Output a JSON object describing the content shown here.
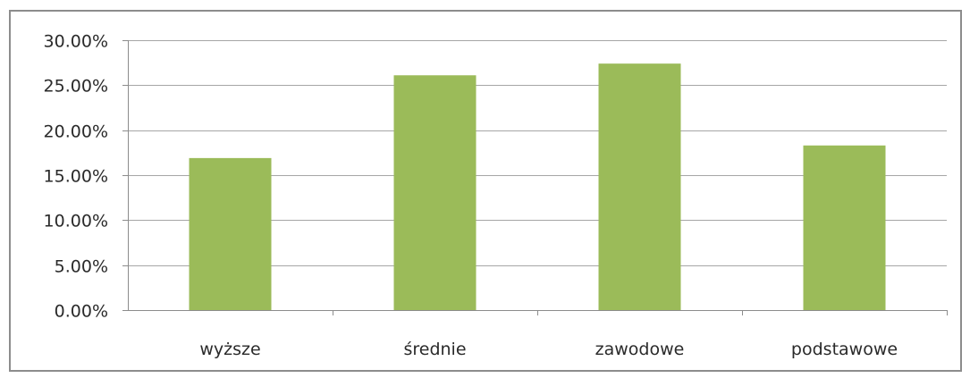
{
  "chart_data": {
    "type": "bar",
    "categories": [
      "wyższe",
      "średnie",
      "zawodowe",
      "podstawowe"
    ],
    "values": [
      0.169,
      0.261,
      0.274,
      0.183
    ],
    "ylim": [
      0,
      0.3
    ],
    "yticks": [
      0,
      0.05,
      0.1,
      0.15,
      0.2,
      0.25,
      0.3
    ],
    "ytick_labels": [
      "0.00%",
      "5.00%",
      "10.00%",
      "15.00%",
      "20.00%",
      "25.00%",
      "30.00%"
    ],
    "grid": true,
    "legend": "none",
    "bar_color": "#9bbb59",
    "grid_color": "#a6a6a6",
    "axis_color": "#8c8c8c"
  }
}
